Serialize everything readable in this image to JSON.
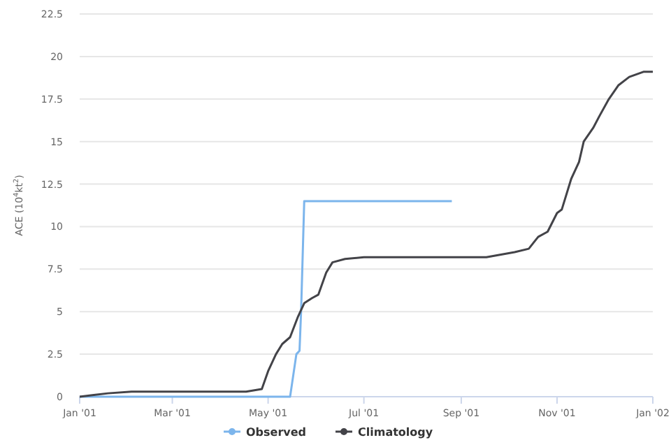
{
  "chart_data": {
    "type": "line",
    "ylabel": "ACE (10$^{4}$kt$^{2}$)",
    "xlim": [
      "2001-01-01",
      "2002-01-01"
    ],
    "xticks": [
      {
        "value": "2001-01-01",
        "label": "Jan '01"
      },
      {
        "value": "2001-03-01",
        "label": "Mar '01"
      },
      {
        "value": "2001-05-01",
        "label": "May '01"
      },
      {
        "value": "2001-07-01",
        "label": "Jul '01"
      },
      {
        "value": "2001-09-01",
        "label": "Sep '01"
      },
      {
        "value": "2001-11-01",
        "label": "Nov '01"
      },
      {
        "value": "2002-01-01",
        "label": "Jan '02"
      }
    ],
    "ylim": [
      0,
      22.5
    ],
    "yticks": [
      0,
      2.5,
      5,
      7.5,
      10,
      12.5,
      15,
      17.5,
      20,
      22.5
    ],
    "grid": "y",
    "legend": "bottom",
    "marker": "none",
    "line_style": "solid",
    "series": [
      {
        "name": "Observed",
        "color": "#7cb5ec",
        "x": [
          "2001-01-01",
          "2001-05-15",
          "2001-05-19",
          "2001-05-21",
          "2001-05-22",
          "2001-05-24",
          "2001-08-26"
        ],
        "values": [
          0,
          0,
          2.5,
          2.7,
          5,
          11.5,
          11.5
        ]
      },
      {
        "name": "Climatology",
        "color": "#434348",
        "x": [
          "2001-01-01",
          "2001-01-10",
          "2001-01-19",
          "2001-02-03",
          "2001-04-17",
          "2001-04-27",
          "2001-05-01",
          "2001-05-06",
          "2001-05-10",
          "2001-05-15",
          "2001-05-20",
          "2001-05-24",
          "2001-05-29",
          "2001-06-02",
          "2001-06-07",
          "2001-06-11",
          "2001-06-19",
          "2001-07-01",
          "2001-09-17",
          "2001-10-05",
          "2001-10-14",
          "2001-10-20",
          "2001-10-26",
          "2001-11-01",
          "2001-11-04",
          "2001-11-10",
          "2001-11-15",
          "2001-11-18",
          "2001-11-24",
          "2001-11-28",
          "2001-12-04",
          "2001-12-10",
          "2001-12-17",
          "2001-12-26",
          "2002-01-01"
        ],
        "values": [
          0,
          0.1,
          0.2,
          0.3,
          0.3,
          0.45,
          1.5,
          2.5,
          3.1,
          3.5,
          4.7,
          5.5,
          5.8,
          6.0,
          7.3,
          7.9,
          8.1,
          8.2,
          8.2,
          8.5,
          8.7,
          9.4,
          9.7,
          10.8,
          11.0,
          12.8,
          13.8,
          15.0,
          15.8,
          16.5,
          17.5,
          18.3,
          18.8,
          19.1,
          19.1
        ]
      }
    ]
  }
}
